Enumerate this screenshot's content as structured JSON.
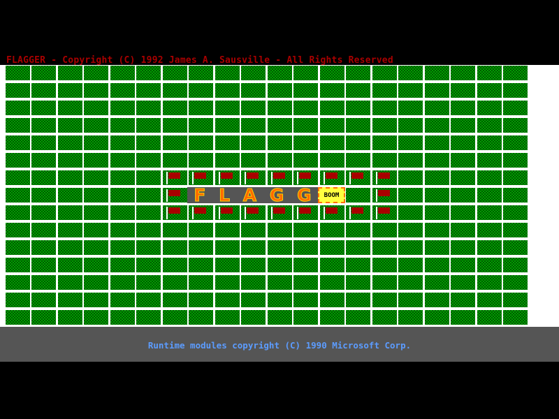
{
  "title": "FLAGGER - Copyright (C) 1992 James A. Sausville - All Rights Reserved",
  "board": {
    "rows": 15,
    "cols": 20,
    "flags": [
      [
        6,
        6
      ],
      [
        6,
        7
      ],
      [
        6,
        8
      ],
      [
        6,
        9
      ],
      [
        6,
        10
      ],
      [
        6,
        11
      ],
      [
        6,
        12
      ],
      [
        6,
        13
      ],
      [
        6,
        14
      ],
      [
        7,
        6
      ],
      [
        7,
        14
      ],
      [
        8,
        6
      ],
      [
        8,
        7
      ],
      [
        8,
        8
      ],
      [
        8,
        9
      ],
      [
        8,
        10
      ],
      [
        8,
        11
      ],
      [
        8,
        12
      ],
      [
        8,
        13
      ],
      [
        8,
        14
      ]
    ]
  },
  "logo": {
    "letters": [
      "F",
      "L",
      "A",
      "G",
      "G"
    ],
    "boom": "BOOM"
  },
  "footer": "Runtime modules copyright (C) 1990 Microsoft Corp.",
  "colors": {
    "title": "#a80000",
    "grass": "#00a000",
    "flag": "#a80000",
    "footer_text": "#5c9cff",
    "footer_bg": "#555555"
  }
}
